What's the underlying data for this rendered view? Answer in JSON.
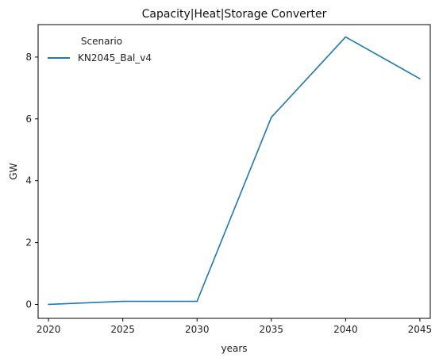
{
  "chart_data": {
    "type": "line",
    "title": "Capacity|Heat|Storage Converter",
    "xlabel": "years",
    "ylabel": "GW",
    "x": [
      2020,
      2025,
      2030,
      2035,
      2040,
      2045
    ],
    "xlim": [
      2019.3,
      2045.7
    ],
    "ylim": [
      -0.45,
      9.05
    ],
    "xticks": [
      2020,
      2025,
      2030,
      2035,
      2040,
      2045
    ],
    "yticks": [
      0,
      2,
      4,
      6,
      8
    ],
    "grid": false,
    "legend": {
      "title": "Scenario",
      "placement": "top-left"
    },
    "series": [
      {
        "name": "KN2045_Bal_v4",
        "color": "#1f77b4",
        "values": [
          0.0,
          0.1,
          0.1,
          6.05,
          8.65,
          7.3
        ]
      }
    ]
  }
}
